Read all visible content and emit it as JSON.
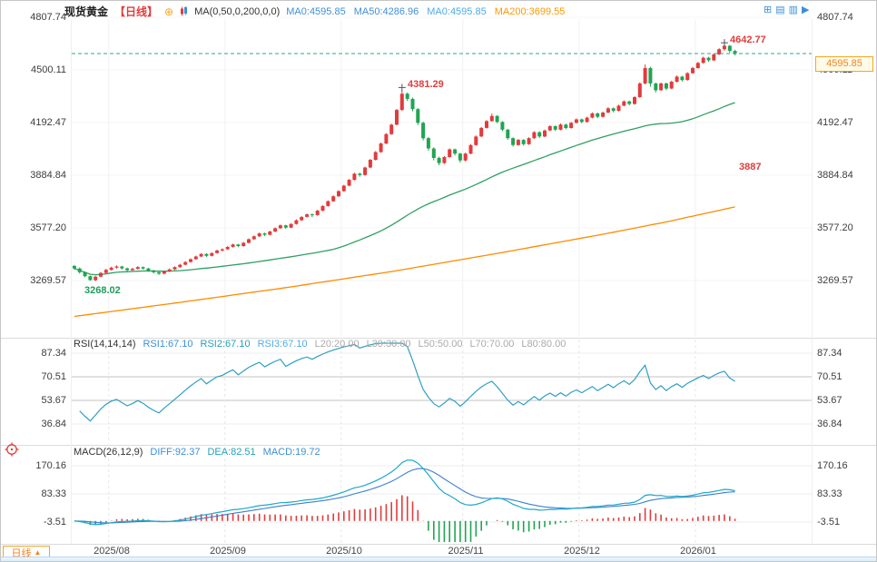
{
  "header": {
    "title": "现货黄金",
    "timeframe_tag": "【日线】",
    "link_icon": "⊕",
    "ma_settings_label": "MA(0,50,0,200,0,0)",
    "ma_values": [
      {
        "label": "MA0:4595.85",
        "color": "#3E8FD8"
      },
      {
        "label": "MA50:4286.96",
        "color": "#3E8FD8"
      },
      {
        "label": "MA0:4595.85",
        "color": "#4FABE8"
      },
      {
        "label": "MA200:3699.55",
        "color": "#FF9900"
      }
    ],
    "toolbar_icons": [
      {
        "name": "add-pane-icon",
        "glyph": "⊞"
      },
      {
        "name": "grid-layout-icon",
        "glyph": "▤"
      },
      {
        "name": "indicator-panel-icon",
        "glyph": "▥"
      },
      {
        "name": "forward-icon",
        "glyph": "▶"
      }
    ]
  },
  "footer": {
    "timeframe_button": "日线",
    "timeframe_arrow": "▲"
  },
  "chart_data": {
    "main": {
      "type": "candlestick",
      "instrument": "现货黄金",
      "period": "日线",
      "y_ticks": [
        4807.74,
        4500.11,
        4192.47,
        3884.84,
        3577.2,
        3269.57
      ],
      "x_ticks": [
        {
          "label": "2025/08",
          "index": 7
        },
        {
          "label": "2025/09",
          "index": 29
        },
        {
          "label": "2025/10",
          "index": 51
        },
        {
          "label": "2025/11",
          "index": 74
        },
        {
          "label": "2025/12",
          "index": 96
        },
        {
          "label": "2026/01",
          "index": 118
        }
      ],
      "up_color": "#E23B3B",
      "down_color": "#21A453",
      "ma50": {
        "name": "MA50",
        "color": "#2FA062",
        "window": 50,
        "last": 4286.96
      },
      "ma200": {
        "name": "MA200",
        "color": "#FF8A00",
        "last": 3699.55,
        "anchors": [
          [
            0,
            3060
          ],
          [
            20,
            3142
          ],
          [
            40,
            3228
          ],
          [
            60,
            3322
          ],
          [
            80,
            3428
          ],
          [
            100,
            3540
          ],
          [
            112,
            3612
          ],
          [
            125,
            3700
          ]
        ]
      },
      "current_price": {
        "label": "4595.85",
        "value": 4595.85,
        "line_color": "#2AA79B"
      },
      "annotations": [
        {
          "text": "4381.29",
          "color": "#E03C3C",
          "index": 62,
          "value": 4381.29,
          "marker": true
        },
        {
          "text": "4642.77",
          "color": "#E03C3C",
          "index": 123,
          "value": 4642.77,
          "marker": true
        },
        {
          "text": "3268.02",
          "color": "#1E9E5A",
          "index": 3,
          "value": 3268.02,
          "below": true
        },
        {
          "text": "3887",
          "color": "#E03C3C",
          "x": 813,
          "y": 177
        }
      ],
      "ohlc": [
        [
          3355,
          3361,
          3332,
          3340
        ],
        [
          3340,
          3346,
          3310,
          3318
        ],
        [
          3318,
          3323,
          3288,
          3295
        ],
        [
          3295,
          3299,
          3268,
          3272
        ],
        [
          3272,
          3297,
          3266,
          3292
        ],
        [
          3292,
          3320,
          3288,
          3314
        ],
        [
          3314,
          3338,
          3310,
          3332
        ],
        [
          3332,
          3351,
          3328,
          3345
        ],
        [
          3345,
          3358,
          3339,
          3352
        ],
        [
          3352,
          3356,
          3334,
          3341
        ],
        [
          3341,
          3345,
          3322,
          3330
        ],
        [
          3330,
          3344,
          3326,
          3338
        ],
        [
          3338,
          3354,
          3334,
          3348
        ],
        [
          3348,
          3352,
          3333,
          3340
        ],
        [
          3340,
          3344,
          3321,
          3328
        ],
        [
          3328,
          3333,
          3311,
          3318
        ],
        [
          3318,
          3322,
          3302,
          3310
        ],
        [
          3310,
          3328,
          3306,
          3323
        ],
        [
          3323,
          3340,
          3319,
          3335
        ],
        [
          3335,
          3353,
          3331,
          3348
        ],
        [
          3348,
          3367,
          3344,
          3362
        ],
        [
          3362,
          3383,
          3358,
          3378
        ],
        [
          3378,
          3399,
          3374,
          3394
        ],
        [
          3394,
          3415,
          3390,
          3410
        ],
        [
          3410,
          3430,
          3406,
          3425
        ],
        [
          3425,
          3429,
          3407,
          3414
        ],
        [
          3414,
          3435,
          3410,
          3430
        ],
        [
          3430,
          3450,
          3426,
          3445
        ],
        [
          3445,
          3458,
          3440,
          3452
        ],
        [
          3452,
          3471,
          3448,
          3466
        ],
        [
          3466,
          3485,
          3462,
          3480
        ],
        [
          3480,
          3484,
          3464,
          3471
        ],
        [
          3471,
          3495,
          3467,
          3490
        ],
        [
          3490,
          3516,
          3486,
          3511
        ],
        [
          3511,
          3533,
          3507,
          3528
        ],
        [
          3528,
          3550,
          3524,
          3545
        ],
        [
          3545,
          3549,
          3529,
          3537
        ],
        [
          3537,
          3561,
          3533,
          3556
        ],
        [
          3556,
          3580,
          3552,
          3575
        ],
        [
          3575,
          3597,
          3571,
          3592
        ],
        [
          3592,
          3596,
          3571,
          3579
        ],
        [
          3579,
          3605,
          3575,
          3600
        ],
        [
          3600,
          3627,
          3596,
          3622
        ],
        [
          3622,
          3646,
          3618,
          3641
        ],
        [
          3641,
          3661,
          3637,
          3656
        ],
        [
          3656,
          3661,
          3640,
          3652
        ],
        [
          3652,
          3683,
          3648,
          3678
        ],
        [
          3678,
          3710,
          3674,
          3705
        ],
        [
          3705,
          3738,
          3701,
          3733
        ],
        [
          3733,
          3767,
          3729,
          3762
        ],
        [
          3762,
          3797,
          3758,
          3792
        ],
        [
          3792,
          3829,
          3788,
          3824
        ],
        [
          3824,
          3863,
          3820,
          3858
        ],
        [
          3858,
          3899,
          3854,
          3894
        ],
        [
          3894,
          3900,
          3876,
          3886
        ],
        [
          3886,
          3935,
          3882,
          3930
        ],
        [
          3930,
          3980,
          3926,
          3975
        ],
        [
          3975,
          4026,
          3971,
          4020
        ],
        [
          4020,
          4076,
          4016,
          4070
        ],
        [
          4070,
          4131,
          4066,
          4125
        ],
        [
          4125,
          4186,
          4121,
          4180
        ],
        [
          4180,
          4272,
          4176,
          4266
        ],
        [
          4266,
          4381,
          4260,
          4361
        ],
        [
          4361,
          4368,
          4318,
          4331
        ],
        [
          4331,
          4338,
          4258,
          4271
        ],
        [
          4271,
          4278,
          4178,
          4191
        ],
        [
          4191,
          4198,
          4088,
          4101
        ],
        [
          4101,
          4108,
          4028,
          4041
        ],
        [
          4041,
          4048,
          3972,
          3986
        ],
        [
          3986,
          3993,
          3943,
          3956
        ],
        [
          3956,
          3997,
          3950,
          3991
        ],
        [
          3991,
          4042,
          3987,
          4036
        ],
        [
          4036,
          4041,
          4000,
          4011
        ],
        [
          4011,
          4016,
          3958,
          3971
        ],
        [
          3971,
          4017,
          3965,
          4011
        ],
        [
          4011,
          4067,
          4007,
          4061
        ],
        [
          4061,
          4117,
          4057,
          4111
        ],
        [
          4111,
          4167,
          4107,
          4161
        ],
        [
          4161,
          4207,
          4157,
          4201
        ],
        [
          4201,
          4245,
          4197,
          4231
        ],
        [
          4231,
          4236,
          4188,
          4196
        ],
        [
          4196,
          4201,
          4142,
          4151
        ],
        [
          4151,
          4156,
          4092,
          4101
        ],
        [
          4101,
          4106,
          4052,
          4061
        ],
        [
          4061,
          4097,
          4057,
          4091
        ],
        [
          4091,
          4096,
          4058,
          4066
        ],
        [
          4066,
          4107,
          4062,
          4101
        ],
        [
          4101,
          4142,
          4097,
          4136
        ],
        [
          4136,
          4141,
          4102,
          4111
        ],
        [
          4111,
          4152,
          4107,
          4146
        ],
        [
          4146,
          4177,
          4142,
          4171
        ],
        [
          4171,
          4176,
          4143,
          4151
        ],
        [
          4151,
          4187,
          4147,
          4181
        ],
        [
          4181,
          4186,
          4152,
          4161
        ],
        [
          4161,
          4197,
          4157,
          4191
        ],
        [
          4191,
          4217,
          4187,
          4211
        ],
        [
          4211,
          4216,
          4188,
          4196
        ],
        [
          4196,
          4227,
          4192,
          4221
        ],
        [
          4221,
          4252,
          4217,
          4246
        ],
        [
          4246,
          4251,
          4218,
          4226
        ],
        [
          4226,
          4257,
          4222,
          4251
        ],
        [
          4251,
          4282,
          4247,
          4276
        ],
        [
          4276,
          4281,
          4252,
          4261
        ],
        [
          4261,
          4297,
          4257,
          4291
        ],
        [
          4291,
          4322,
          4287,
          4316
        ],
        [
          4316,
          4321,
          4292,
          4301
        ],
        [
          4301,
          4347,
          4297,
          4341
        ],
        [
          4341,
          4428,
          4337,
          4421
        ],
        [
          4421,
          4532,
          4415,
          4511
        ],
        [
          4511,
          4518,
          4402,
          4421
        ],
        [
          4421,
          4426,
          4368,
          4381
        ],
        [
          4381,
          4427,
          4377,
          4421
        ],
        [
          4421,
          4426,
          4381,
          4391
        ],
        [
          4391,
          4437,
          4387,
          4431
        ],
        [
          4431,
          4467,
          4427,
          4461
        ],
        [
          4461,
          4466,
          4432,
          4441
        ],
        [
          4441,
          4487,
          4437,
          4481
        ],
        [
          4481,
          4517,
          4477,
          4511
        ],
        [
          4511,
          4547,
          4507,
          4541
        ],
        [
          4541,
          4577,
          4537,
          4571
        ],
        [
          4571,
          4576,
          4547,
          4556
        ],
        [
          4556,
          4597,
          4552,
          4591
        ],
        [
          4591,
          4627,
          4587,
          4621
        ],
        [
          4621,
          4643,
          4612,
          4641
        ],
        [
          4641,
          4646,
          4601,
          4611
        ],
        [
          4611,
          4618,
          4585,
          4596
        ]
      ]
    },
    "rsi": {
      "type": "line",
      "period": 14,
      "line_color": "#2E9FC4",
      "y_ticks": [
        87.34,
        70.51,
        53.67,
        36.84
      ],
      "ref_lines": [
        70.51,
        53.67
      ],
      "header": [
        {
          "text": "RSI(14,14,14)",
          "color": "#333333"
        },
        {
          "text": "RSI1:67.10",
          "color": "#3E8FD8"
        },
        {
          "text": "RSI2:67.10",
          "color": "#22A2B8"
        },
        {
          "text": "RSI3:67.10",
          "color": "#4FABE8"
        },
        {
          "text": "L20:20.00",
          "color": "#AAAAAA"
        },
        {
          "text": "L30:30.00",
          "color": "#AAAAAA"
        },
        {
          "text": "L50:50.00",
          "color": "#AAAAAA"
        },
        {
          "text": "L70:70.00",
          "color": "#AAAAAA"
        },
        {
          "text": "L80:80.00",
          "color": "#AAAAAA"
        }
      ]
    },
    "macd": {
      "type": "line+bar",
      "params": [
        26,
        12,
        9
      ],
      "diff_color": "#1FA8C9",
      "dea_color": "#3C7FD0",
      "hist_up_color": "#E23B3B",
      "hist_down_color": "#21A453",
      "y_ticks": [
        170.16,
        83.33,
        -3.51
      ],
      "header": [
        {
          "text": "MACD(26,12,9)",
          "color": "#333333"
        },
        {
          "text": "DIFF:92.37",
          "color": "#3E8FD8"
        },
        {
          "text": "DEA:82.51",
          "color": "#22A2B8"
        },
        {
          "text": "MACD:19.72",
          "color": "#3E8FD8"
        }
      ]
    }
  }
}
